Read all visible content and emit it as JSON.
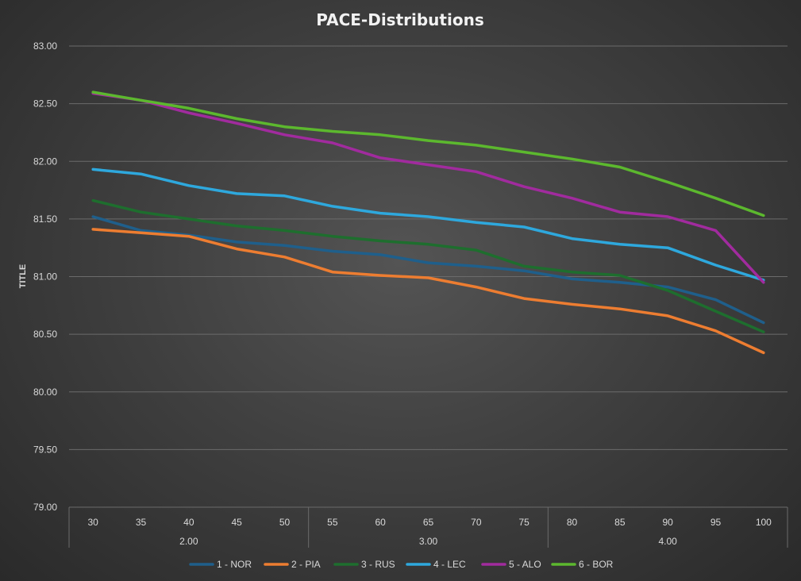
{
  "chart_data": {
    "type": "line",
    "title": "PACE-Distributions",
    "ylabel": "TITLE",
    "xlabel": "",
    "ylim": [
      79.0,
      83.0
    ],
    "ytick_step": 0.5,
    "y_tick_labels": [
      "79.00",
      "79.50",
      "80.00",
      "80.50",
      "81.00",
      "81.50",
      "82.00",
      "82.50",
      "83.00"
    ],
    "categories": [
      "30",
      "35",
      "40",
      "45",
      "50",
      "55",
      "60",
      "65",
      "70",
      "75",
      "80",
      "85",
      "90",
      "95",
      "100"
    ],
    "groups": [
      {
        "label": "2.00",
        "count": 5
      },
      {
        "label": "3.00",
        "count": 5
      },
      {
        "label": "4.00",
        "count": 5
      }
    ],
    "grid": true,
    "legend_position": "bottom",
    "series": [
      {
        "name": "1 - NOR",
        "color": "#1f5f8b",
        "values": [
          81.52,
          81.4,
          81.36,
          81.3,
          81.27,
          81.22,
          81.19,
          81.12,
          81.09,
          81.05,
          80.98,
          80.95,
          80.91,
          80.8,
          80.6
        ]
      },
      {
        "name": "2 - PIA",
        "color": "#ed7d31",
        "values": [
          81.41,
          81.38,
          81.35,
          81.24,
          81.17,
          81.04,
          81.01,
          80.99,
          80.91,
          80.81,
          80.76,
          80.72,
          80.66,
          80.53,
          80.34
        ]
      },
      {
        "name": "3 - RUS",
        "color": "#1e6e2e",
        "values": [
          81.66,
          81.56,
          81.5,
          81.44,
          81.4,
          81.35,
          81.31,
          81.28,
          81.23,
          81.09,
          81.04,
          81.01,
          80.88,
          80.7,
          80.52
        ]
      },
      {
        "name": "4 - LEC",
        "color": "#2ea8dd",
        "values": [
          81.93,
          81.89,
          81.79,
          81.72,
          81.7,
          81.61,
          81.55,
          81.52,
          81.47,
          81.43,
          81.33,
          81.28,
          81.25,
          81.1,
          80.97
        ]
      },
      {
        "name": "5 - ALO",
        "color": "#a12b9e",
        "values": [
          82.59,
          82.53,
          82.42,
          82.33,
          82.23,
          82.16,
          82.03,
          81.97,
          81.91,
          81.78,
          81.68,
          81.56,
          81.52,
          81.4,
          80.95
        ]
      },
      {
        "name": "6 - BOR",
        "color": "#5cb82e",
        "values": [
          82.6,
          82.53,
          82.46,
          82.37,
          82.3,
          82.26,
          82.23,
          82.18,
          82.14,
          82.08,
          82.02,
          81.95,
          81.82,
          81.68,
          81.53
        ]
      }
    ]
  }
}
